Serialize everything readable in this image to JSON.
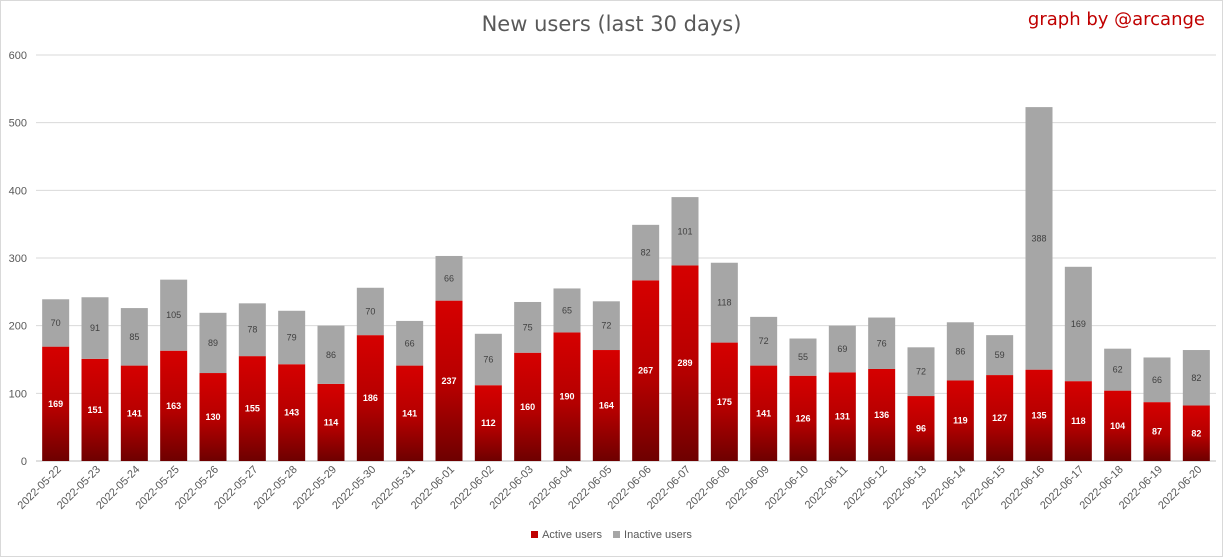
{
  "chart_data": {
    "type": "bar",
    "stacked": true,
    "title": "New users (last 30 days)",
    "credit": "graph by @arcange",
    "xlabel": "",
    "ylabel": "",
    "ylim": [
      0,
      600
    ],
    "yticks": [
      0,
      100,
      200,
      300,
      400,
      500,
      600
    ],
    "grid": true,
    "legend_position": "bottom",
    "categories": [
      "2022-05-22",
      "2022-05-23",
      "2022-05-24",
      "2022-05-25",
      "2022-05-26",
      "2022-05-27",
      "2022-05-28",
      "2022-05-29",
      "2022-05-30",
      "2022-05-31",
      "2022-06-01",
      "2022-06-02",
      "2022-06-03",
      "2022-06-04",
      "2022-06-05",
      "2022-06-06",
      "2022-06-07",
      "2022-06-08",
      "2022-06-09",
      "2022-06-10",
      "2022-06-11",
      "2022-06-12",
      "2022-06-13",
      "2022-06-14",
      "2022-06-15",
      "2022-06-16",
      "2022-06-17",
      "2022-06-18",
      "2022-06-19",
      "2022-06-20"
    ],
    "series": [
      {
        "name": "Active users",
        "color": "#c00000",
        "values": [
          169,
          151,
          141,
          163,
          130,
          155,
          143,
          114,
          186,
          141,
          237,
          112,
          160,
          190,
          164,
          267,
          289,
          175,
          141,
          126,
          131,
          136,
          96,
          119,
          127,
          135,
          118,
          104,
          87,
          82
        ]
      },
      {
        "name": "Inactive users",
        "color": "#a6a6a6",
        "values": [
          70,
          91,
          85,
          105,
          89,
          78,
          79,
          86,
          70,
          66,
          66,
          76,
          75,
          65,
          72,
          82,
          101,
          118,
          72,
          55,
          69,
          76,
          72,
          86,
          59,
          388,
          169,
          62,
          66,
          82
        ]
      }
    ]
  }
}
